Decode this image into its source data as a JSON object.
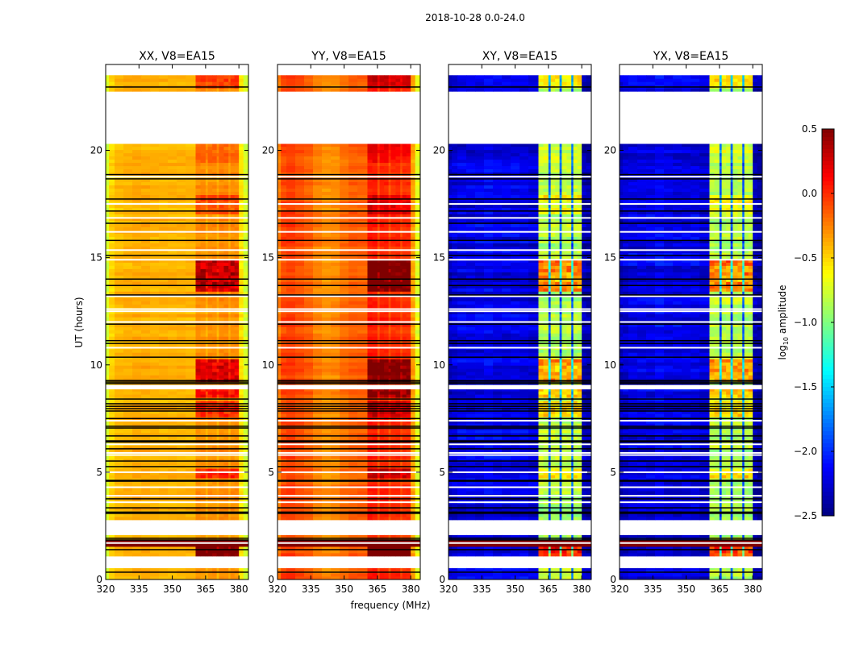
{
  "chart_data": {
    "type": "heatmap",
    "title": "2018-10-28 0.0-24.0",
    "xlabel": "frequency (MHz)",
    "ylabel": "UT (hours)",
    "xlim": [
      320,
      384.3
    ],
    "ylim": [
      0,
      24
    ],
    "xticks": [
      320,
      335,
      350,
      365,
      380
    ],
    "yticks": [
      0,
      5,
      10,
      15,
      20
    ],
    "colorbar": {
      "label": "log10 amplitude",
      "label_main": "log",
      "label_sub": "10",
      "label_rest": " amplitude",
      "colormap": "jet",
      "vmin": -2.5,
      "vmax": 0.5,
      "ticks": [
        0.5,
        0.0,
        -0.5,
        -1.0,
        -1.5,
        -2.0,
        -2.5
      ],
      "tick_labels": [
        "0.5",
        "0.0",
        "−0.5",
        "−1.0",
        "−1.5",
        "−2.0",
        "−2.5"
      ]
    },
    "freq_bin_edges_mhz": [
      320,
      321.5,
      324,
      328,
      332,
      336,
      340,
      344,
      348,
      352,
      356,
      360.5,
      362.7,
      365,
      366,
      368,
      370,
      371,
      373.2,
      375.3,
      376.2,
      378,
      380,
      382,
      384.3
    ],
    "rfi_bin_mask": [
      0,
      0,
      0,
      0,
      0,
      0,
      0,
      0,
      0,
      0,
      0,
      1,
      1,
      1,
      1,
      1,
      1,
      1,
      1,
      1,
      1,
      1,
      0,
      0
    ],
    "data_segments_hours": [
      [
        0,
        0.53
      ],
      [
        1.09,
        2.07
      ],
      [
        2.78,
        8.86
      ],
      [
        9.08,
        20.3
      ],
      [
        22.75,
        23.5
      ]
    ],
    "rfi_boost_periods": [
      [
        13.5,
        15.0,
        0.6
      ],
      [
        9.3,
        10.3,
        0.5
      ],
      [
        1.1,
        1.55,
        0.9
      ],
      [
        8.5,
        8.86,
        0.4
      ],
      [
        7.6,
        8.4,
        0.3
      ],
      [
        4.8,
        5.2,
        0.3
      ],
      [
        17.0,
        18.0,
        0.2
      ],
      [
        22.9,
        23.5,
        0.25
      ],
      [
        19.5,
        20.3,
        0.15
      ]
    ],
    "broadband_rfi_hours": [
      1.55,
      1.85
    ],
    "broadband_rfi_value": 0.5,
    "flagged_row_hours": [
      22.95,
      18.87,
      18.67,
      17.73,
      17.17,
      16.6,
      15.8,
      15.1,
      14.0,
      13.7,
      13.26,
      11.9,
      11.13,
      11.0,
      10.36,
      9.27,
      9.2,
      9.13,
      8.41,
      8.19,
      8.07,
      7.96,
      7.85,
      7.5,
      7.14,
      7.06,
      6.69,
      6.46,
      6.41,
      6.09,
      5.52,
      5.26,
      4.62,
      4.58,
      3.76,
      3.34,
      3.14,
      3.08,
      1.92,
      1.84,
      1.39,
      0.34
    ],
    "blank_row_hours": [
      18.77,
      17.5,
      16.85,
      16.2,
      15.35,
      14.9,
      13.2,
      12.6,
      12.5,
      12.0,
      10.8,
      7.4,
      6.3,
      5.9,
      5.8,
      5.0,
      4.3,
      3.9,
      3.6,
      1.7
    ],
    "panels": [
      {
        "title": "XX, V8=EA15",
        "noise": 0.07,
        "profile": [
          -0.75,
          -0.5,
          -0.42,
          -0.4,
          -0.38,
          -0.38,
          -0.4,
          -0.4,
          -0.4,
          -0.4,
          -0.4,
          -0.3,
          -0.3,
          -0.38,
          -0.3,
          -0.3,
          -0.38,
          -0.28,
          -0.28,
          -0.38,
          -0.3,
          -0.3,
          -0.55,
          -0.75
        ]
      },
      {
        "title": "YY, V8=EA15",
        "noise": 0.07,
        "profile": [
          -0.25,
          -0.08,
          -0.05,
          -0.1,
          -0.15,
          -0.25,
          -0.3,
          -0.28,
          -0.2,
          -0.15,
          -0.15,
          0.05,
          0.05,
          -0.1,
          0.02,
          0.02,
          -0.1,
          0.0,
          0.0,
          -0.1,
          -0.02,
          -0.02,
          -0.35,
          -0.7
        ]
      },
      {
        "title": "XY, V8=EA15",
        "noise": 0.16,
        "profile": [
          -2.3,
          -2.25,
          -2.2,
          -2.2,
          -2.2,
          -2.15,
          -2.2,
          -2.2,
          -2.2,
          -2.2,
          -2.25,
          -0.85,
          -0.85,
          -1.9,
          -0.85,
          -0.85,
          -1.9,
          -0.85,
          -0.85,
          -1.9,
          -0.85,
          -0.85,
          -2.35,
          -2.4
        ]
      },
      {
        "title": "YX, V8=EA15",
        "noise": 0.16,
        "profile": [
          -2.3,
          -2.25,
          -2.2,
          -2.2,
          -2.2,
          -2.15,
          -2.2,
          -2.2,
          -2.2,
          -2.2,
          -2.25,
          -0.85,
          -0.85,
          -1.9,
          -0.85,
          -0.85,
          -1.9,
          -0.85,
          -0.85,
          -1.9,
          -0.85,
          -0.85,
          -2.35,
          -2.4
        ]
      }
    ]
  }
}
